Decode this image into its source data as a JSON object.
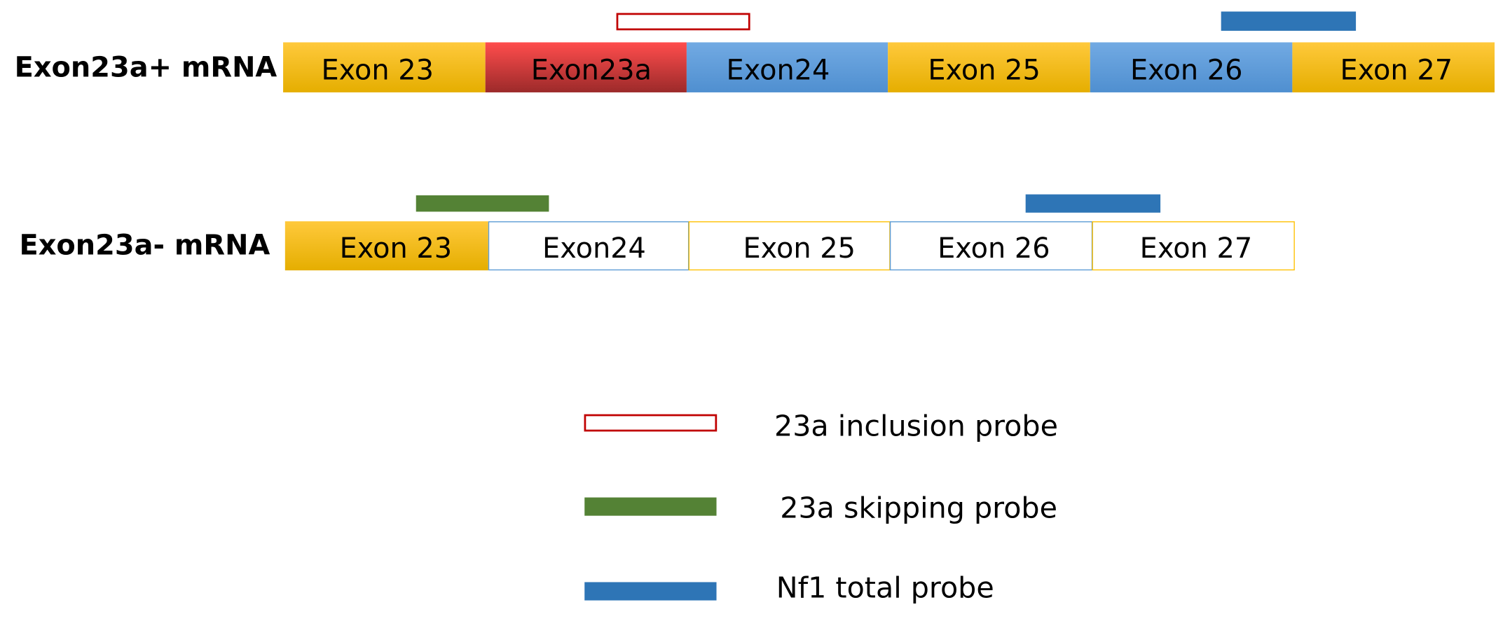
{
  "transcripts": [
    {
      "label": "Exon23a+ mRNA",
      "exons": [
        "Exon 23",
        "Exon23a",
        "Exon24",
        "Exon 25",
        "Exon 26",
        "Exon 27"
      ]
    },
    {
      "label": "Exon23a- mRNA",
      "exons": [
        "Exon 23",
        "Exon24",
        "Exon 25",
        "Exon 26",
        "Exon 27"
      ]
    }
  ],
  "legend": [
    "23a inclusion probe",
    "23a skipping probe",
    "Nf1 total probe"
  ]
}
